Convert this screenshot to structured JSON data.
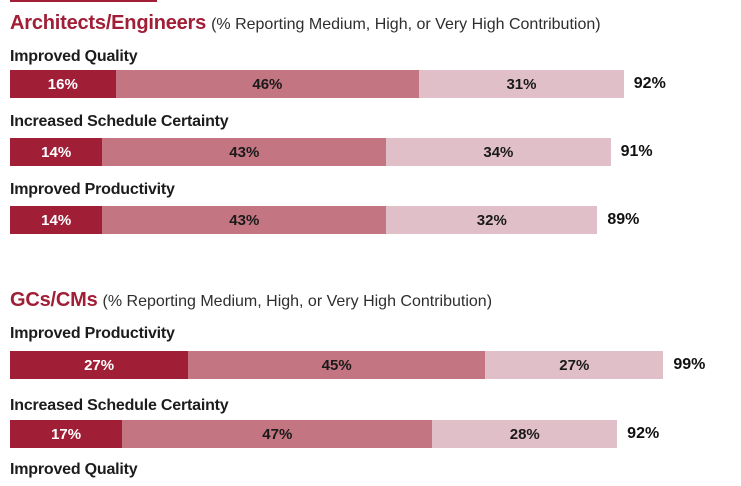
{
  "colors": {
    "dark_red": "#A01E36",
    "medium_rose": "#C47582",
    "light_pink": "#E1BFC8",
    "title_red": "#A01E36",
    "segment_text_on_dark": "#FFFFFF",
    "segment_text_on_light": "#1a1a1a",
    "label_text": "#1c1c1c",
    "subtitle_text": "#2e2e2e"
  },
  "decor": {
    "top_cropped_bar": "partial dark red bar cut off at top edge"
  },
  "chart_data": {
    "type": "bar",
    "orientation": "horizontal",
    "stacked": true,
    "unit": "%",
    "xlim": [
      0,
      100
    ],
    "grid": false,
    "legend": null,
    "series_colors": [
      "dark_red",
      "medium_rose",
      "light_pink"
    ],
    "sections": [
      {
        "title": "Architects/Engineers",
        "subtitle": "(% Reporting Medium, High, or Very High Contribution)",
        "rows": [
          {
            "label": "Improved Quality",
            "values": [
              16,
              46,
              31
            ],
            "labels": [
              "16%",
              "46%",
              "31%"
            ],
            "total": 92,
            "total_label": "92%",
            "bar_visible": true
          },
          {
            "label": "Increased Schedule Certainty",
            "values": [
              14,
              43,
              34
            ],
            "labels": [
              "14%",
              "43%",
              "34%"
            ],
            "total": 91,
            "total_label": "91%",
            "bar_visible": true
          },
          {
            "label": "Improved Productivity",
            "values": [
              14,
              43,
              32
            ],
            "labels": [
              "14%",
              "43%",
              "32%"
            ],
            "total": 89,
            "total_label": "89%",
            "bar_visible": true
          }
        ]
      },
      {
        "title": "GCs/CMs",
        "subtitle": "(% Reporting Medium, High, or Very High Contribution)",
        "rows": [
          {
            "label": "Improved Productivity",
            "values": [
              27,
              45,
              27
            ],
            "labels": [
              "27%",
              "45%",
              "27%"
            ],
            "total": 99,
            "total_label": "99%",
            "bar_visible": true
          },
          {
            "label": "Increased Schedule Certainty",
            "values": [
              17,
              47,
              28
            ],
            "labels": [
              "17%",
              "47%",
              "28%"
            ],
            "total": 92,
            "total_label": "92%",
            "bar_visible": true
          },
          {
            "label": "Improved Quality",
            "values": null,
            "labels": null,
            "total": null,
            "total_label": null,
            "bar_visible": false
          }
        ]
      }
    ]
  }
}
